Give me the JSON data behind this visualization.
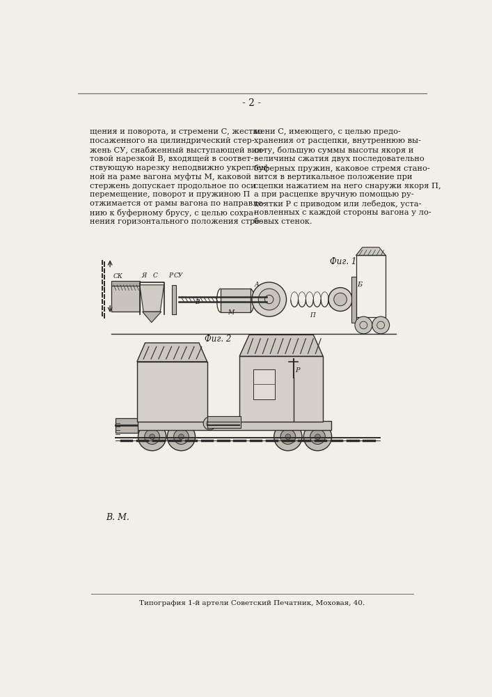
{
  "page_number": "- 2 -",
  "background_color": "#f2efe8",
  "text_color": "#1a1a1a",
  "left_column_text": [
    "щения и поворота, и стремени С, жестко",
    "посаженного на цилиндрический стер-",
    "жень СУ, снабженный выступающей вин-",
    "товой нарезкой В, входящей в соответ-",
    "ствующую нарезку неподвижно укреплен-",
    "ной на раме вагона муфты М, каковой",
    "стержень допускает продольное по оси",
    "перемещение, поворот и пружиною П",
    "отжимается от рамы вагона по направле-",
    "нию к буферному брусу, с целью сохра-",
    "нения горизонтального положения стре-"
  ],
  "right_column_text": [
    "мени С, имеющего, с целью предо-",
    "хранения от расцепки, внутреннюю вы-",
    "соту, большую суммы высоты якоря и",
    "величины сжатия двух последовательно",
    "буферных пружин, каковое стремя стано-",
    "вится в вертикальное положение при",
    "сцепки нажатием на него снаружи якоря П,",
    "а при расцепке вручную помощью ру-",
    "коятки Р с приводом или лебедок, уста-",
    "новленных с каждой стороны вагона у ло-",
    "бовых стенок."
  ],
  "fig1_label": "Фиг. 1",
  "fig2_label": "Фиг. 2",
  "bottom_text": "Типография 1-й артели Советский Печатник, Моховая, 40.",
  "vm_text": "В. М.",
  "line_color": "#2a2a2a"
}
